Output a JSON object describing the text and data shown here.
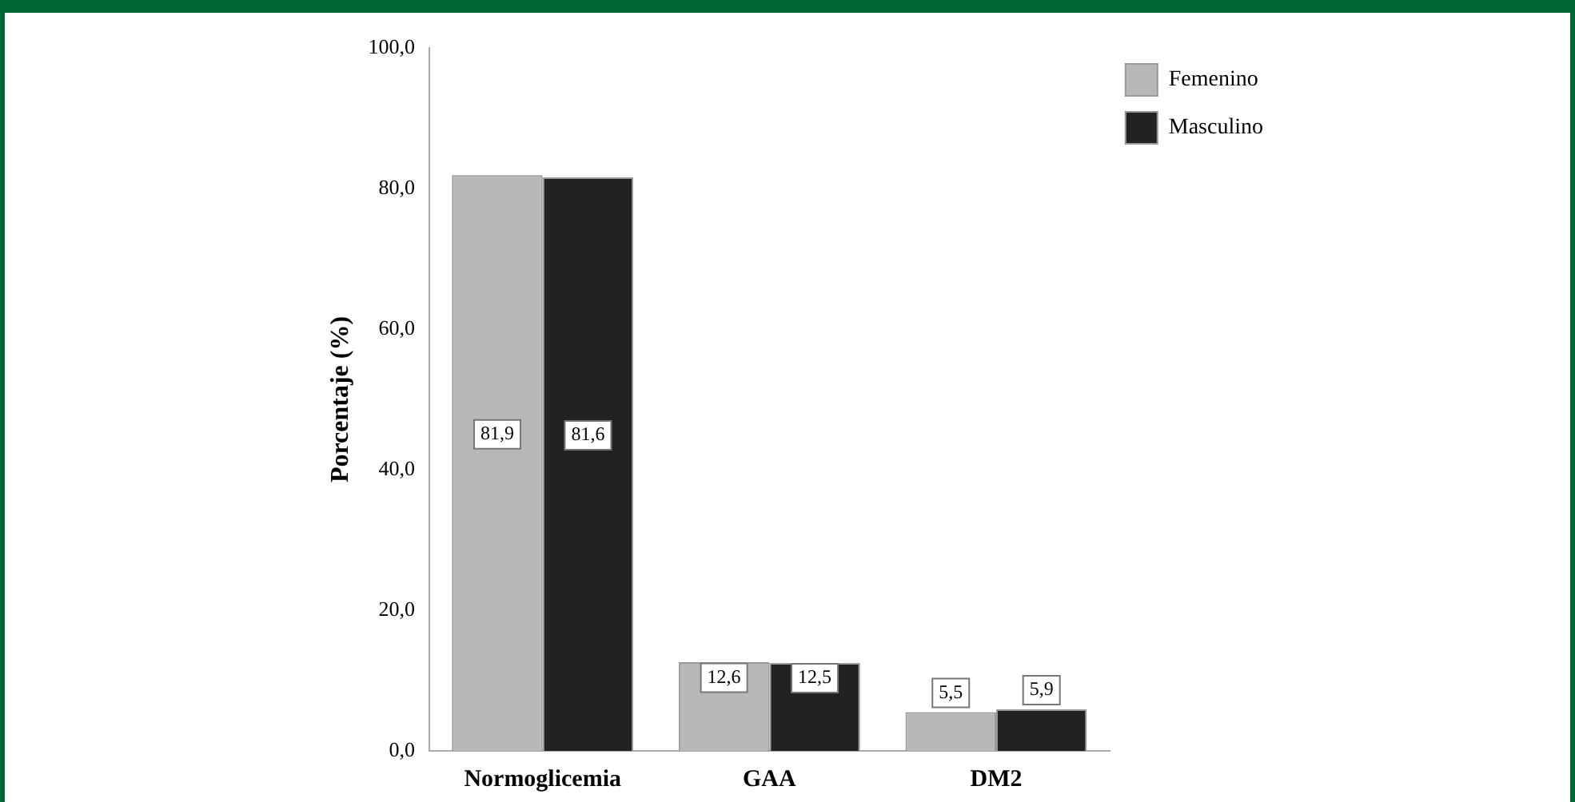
{
  "chart_data": {
    "type": "bar",
    "ylabel": "Porcentaje (%)",
    "categories": [
      "Normoglicemia",
      "GAA",
      "DM2"
    ],
    "series": [
      {
        "name": "Femenino",
        "color": "#b8b8b8",
        "values": [
          81.9,
          12.6,
          5.5
        ],
        "value_labels": [
          "81,9",
          "12,6",
          "5,5"
        ]
      },
      {
        "name": "Masculino",
        "color": "#222222",
        "values": [
          81.6,
          12.5,
          5.9
        ],
        "value_labels": [
          "81,6",
          "12,5",
          "5,9"
        ]
      }
    ],
    "ylim": [
      0,
      100
    ],
    "yticks": [
      {
        "value": 0,
        "label": "0,0"
      },
      {
        "value": 20,
        "label": "20,0"
      },
      {
        "value": 40,
        "label": "40,0"
      },
      {
        "value": 60,
        "label": "60,0"
      },
      {
        "value": 80,
        "label": "80,0"
      },
      {
        "value": 100,
        "label": "100,0"
      }
    ],
    "grid": false,
    "legend": "top right"
  }
}
